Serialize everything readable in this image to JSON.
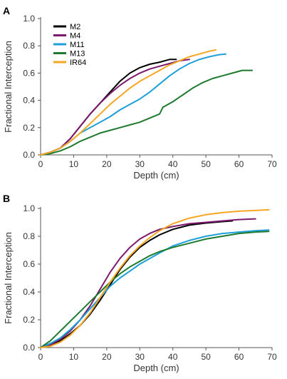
{
  "chart_data": [
    {
      "panel": "A",
      "type": "line",
      "xlabel": "Depth (cm)",
      "ylabel": "Fractional Interception",
      "xlim": [
        0,
        70
      ],
      "ylim": [
        0,
        1.0
      ],
      "xticks": [
        "0",
        "10",
        "20",
        "30",
        "40",
        "50",
        "60",
        "70"
      ],
      "yticks": [
        "0.0",
        "0.2",
        "0.4",
        "0.6",
        "0.8",
        "1.0"
      ],
      "grid": false,
      "legend": "top-left",
      "series": [
        {
          "name": "M2",
          "color": "#000000",
          "x": [
            0,
            3,
            6,
            9,
            12,
            15,
            18,
            21,
            24,
            27,
            30,
            33,
            36,
            39,
            41
          ],
          "y": [
            0,
            0.02,
            0.05,
            0.12,
            0.21,
            0.3,
            0.38,
            0.46,
            0.54,
            0.6,
            0.64,
            0.665,
            0.68,
            0.7,
            0.7
          ]
        },
        {
          "name": "M4",
          "color": "#7b1a6e",
          "x": [
            0,
            3,
            6,
            9,
            12,
            15,
            18,
            21,
            24,
            27,
            30,
            33,
            36,
            39,
            42,
            45
          ],
          "y": [
            0,
            0.02,
            0.05,
            0.12,
            0.21,
            0.3,
            0.38,
            0.45,
            0.51,
            0.56,
            0.6,
            0.63,
            0.65,
            0.67,
            0.69,
            0.7
          ]
        },
        {
          "name": "M11",
          "color": "#1e9fd9",
          "x": [
            0,
            3,
            6,
            9,
            12,
            15,
            18,
            21,
            24,
            27,
            30,
            33,
            36,
            39,
            42,
            45,
            48,
            51,
            54,
            56
          ],
          "y": [
            0,
            0.02,
            0.05,
            0.1,
            0.16,
            0.2,
            0.24,
            0.28,
            0.33,
            0.37,
            0.41,
            0.46,
            0.52,
            0.58,
            0.63,
            0.67,
            0.7,
            0.72,
            0.735,
            0.74
          ]
        },
        {
          "name": "M13",
          "color": "#1f7a30",
          "x": [
            0,
            3,
            6,
            9,
            12,
            15,
            18,
            21,
            24,
            27,
            30,
            33,
            36,
            37,
            40,
            43,
            46,
            49,
            52,
            55,
            58,
            61,
            64
          ],
          "y": [
            0,
            0.01,
            0.03,
            0.06,
            0.1,
            0.13,
            0.16,
            0.18,
            0.2,
            0.22,
            0.24,
            0.27,
            0.3,
            0.35,
            0.39,
            0.44,
            0.49,
            0.53,
            0.56,
            0.58,
            0.6,
            0.62,
            0.62
          ]
        },
        {
          "name": "IR64",
          "color": "#f5a623",
          "x": [
            0,
            3,
            6,
            9,
            12,
            15,
            18,
            21,
            24,
            27,
            30,
            33,
            36,
            39,
            42,
            45,
            48,
            51,
            53
          ],
          "y": [
            0,
            0.02,
            0.05,
            0.1,
            0.16,
            0.23,
            0.3,
            0.37,
            0.43,
            0.49,
            0.54,
            0.58,
            0.62,
            0.66,
            0.69,
            0.72,
            0.74,
            0.76,
            0.77
          ]
        }
      ]
    },
    {
      "panel": "B",
      "type": "line",
      "xlabel": "Depth (cm)",
      "ylabel": "Fractional Interception",
      "xlim": [
        0,
        70
      ],
      "ylim": [
        0,
        1.0
      ],
      "xticks": [
        "0",
        "10",
        "20",
        "30",
        "40",
        "50",
        "60",
        "70"
      ],
      "yticks": [
        "0.0",
        "0.2",
        "0.4",
        "0.6",
        "0.8",
        "1.0"
      ],
      "grid": false,
      "legend": "none",
      "series": [
        {
          "name": "M2",
          "color": "#000000",
          "x": [
            0,
            3,
            6,
            9,
            12,
            15,
            18,
            21,
            24,
            27,
            30,
            33,
            36,
            40,
            45,
            50,
            55,
            58
          ],
          "y": [
            0,
            0.02,
            0.05,
            0.1,
            0.16,
            0.24,
            0.34,
            0.45,
            0.56,
            0.65,
            0.72,
            0.77,
            0.81,
            0.85,
            0.88,
            0.895,
            0.905,
            0.91
          ]
        },
        {
          "name": "M4",
          "color": "#7b1a6e",
          "x": [
            0,
            3,
            6,
            9,
            12,
            15,
            18,
            21,
            24,
            27,
            30,
            33,
            36,
            40,
            45,
            50,
            55,
            60,
            65
          ],
          "y": [
            0,
            0.02,
            0.06,
            0.12,
            0.2,
            0.3,
            0.42,
            0.54,
            0.64,
            0.72,
            0.78,
            0.82,
            0.85,
            0.87,
            0.89,
            0.9,
            0.91,
            0.92,
            0.925
          ]
        },
        {
          "name": "M11",
          "color": "#1e9fd9",
          "x": [
            0,
            3,
            6,
            9,
            12,
            15,
            18,
            21,
            24,
            27,
            30,
            33,
            36,
            40,
            45,
            50,
            55,
            60,
            65,
            69
          ],
          "y": [
            0,
            0.03,
            0.07,
            0.13,
            0.2,
            0.28,
            0.36,
            0.44,
            0.5,
            0.55,
            0.6,
            0.64,
            0.68,
            0.73,
            0.77,
            0.8,
            0.82,
            0.83,
            0.84,
            0.845
          ]
        },
        {
          "name": "M13",
          "color": "#1f7a30",
          "x": [
            0,
            3,
            6,
            9,
            12,
            15,
            18,
            21,
            24,
            27,
            30,
            33,
            36,
            40,
            45,
            50,
            55,
            60,
            65,
            69
          ],
          "y": [
            0,
            0.05,
            0.12,
            0.19,
            0.26,
            0.33,
            0.4,
            0.47,
            0.53,
            0.58,
            0.62,
            0.66,
            0.69,
            0.72,
            0.75,
            0.78,
            0.8,
            0.82,
            0.83,
            0.835
          ]
        },
        {
          "name": "IR64",
          "color": "#f5a623",
          "x": [
            0,
            3,
            6,
            9,
            12,
            15,
            18,
            21,
            24,
            27,
            30,
            33,
            36,
            40,
            45,
            50,
            55,
            60,
            65,
            69
          ],
          "y": [
            0,
            0.01,
            0.04,
            0.09,
            0.16,
            0.25,
            0.36,
            0.47,
            0.57,
            0.66,
            0.73,
            0.79,
            0.84,
            0.89,
            0.93,
            0.955,
            0.97,
            0.98,
            0.985,
            0.99
          ]
        }
      ]
    }
  ]
}
